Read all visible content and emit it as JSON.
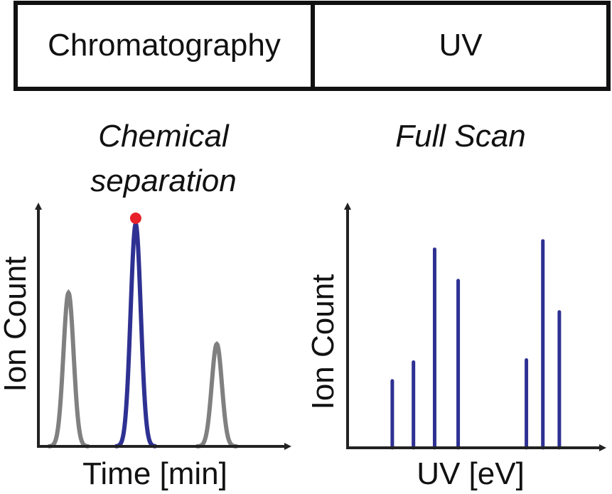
{
  "header": {
    "left_label": "Chromatography",
    "right_label": "UV"
  },
  "left_panel": {
    "title_line1": "Chemical",
    "title_line2": "separation",
    "xlabel": "Time [min]",
    "ylabel": "Ion Count"
  },
  "right_panel": {
    "title": "Full Scan",
    "xlabel": "UV [eV]",
    "ylabel": "Ion Count"
  },
  "chart_data": [
    {
      "type": "line",
      "title": "Chemical separation",
      "xlabel": "Time [min]",
      "ylabel": "Ion Count",
      "x_range": [
        0,
        10
      ],
      "y_range": [
        0,
        1
      ],
      "grid": false,
      "peaks": [
        {
          "center": 1.3,
          "height": 0.69,
          "width": 0.22,
          "color": "#808080",
          "highlighted": false
        },
        {
          "center": 4.2,
          "height": 1.0,
          "width": 0.22,
          "color": "#2e3192",
          "highlighted": true
        },
        {
          "center": 7.7,
          "height": 0.46,
          "width": 0.22,
          "color": "#808080",
          "highlighted": false
        }
      ],
      "marker": {
        "peak_index": 1,
        "color": "#e8202a"
      }
    },
    {
      "type": "bar",
      "title": "Full Scan",
      "xlabel": "UV [eV]",
      "ylabel": "Ion Count",
      "x_range": [
        0,
        10
      ],
      "y_range": [
        0,
        1
      ],
      "grid": false,
      "color": "#2e3192",
      "x": [
        1.9,
        2.8,
        3.7,
        4.7,
        7.6,
        8.3,
        9.0
      ],
      "values": [
        0.32,
        0.41,
        0.95,
        0.8,
        0.42,
        0.99,
        0.65
      ]
    }
  ]
}
